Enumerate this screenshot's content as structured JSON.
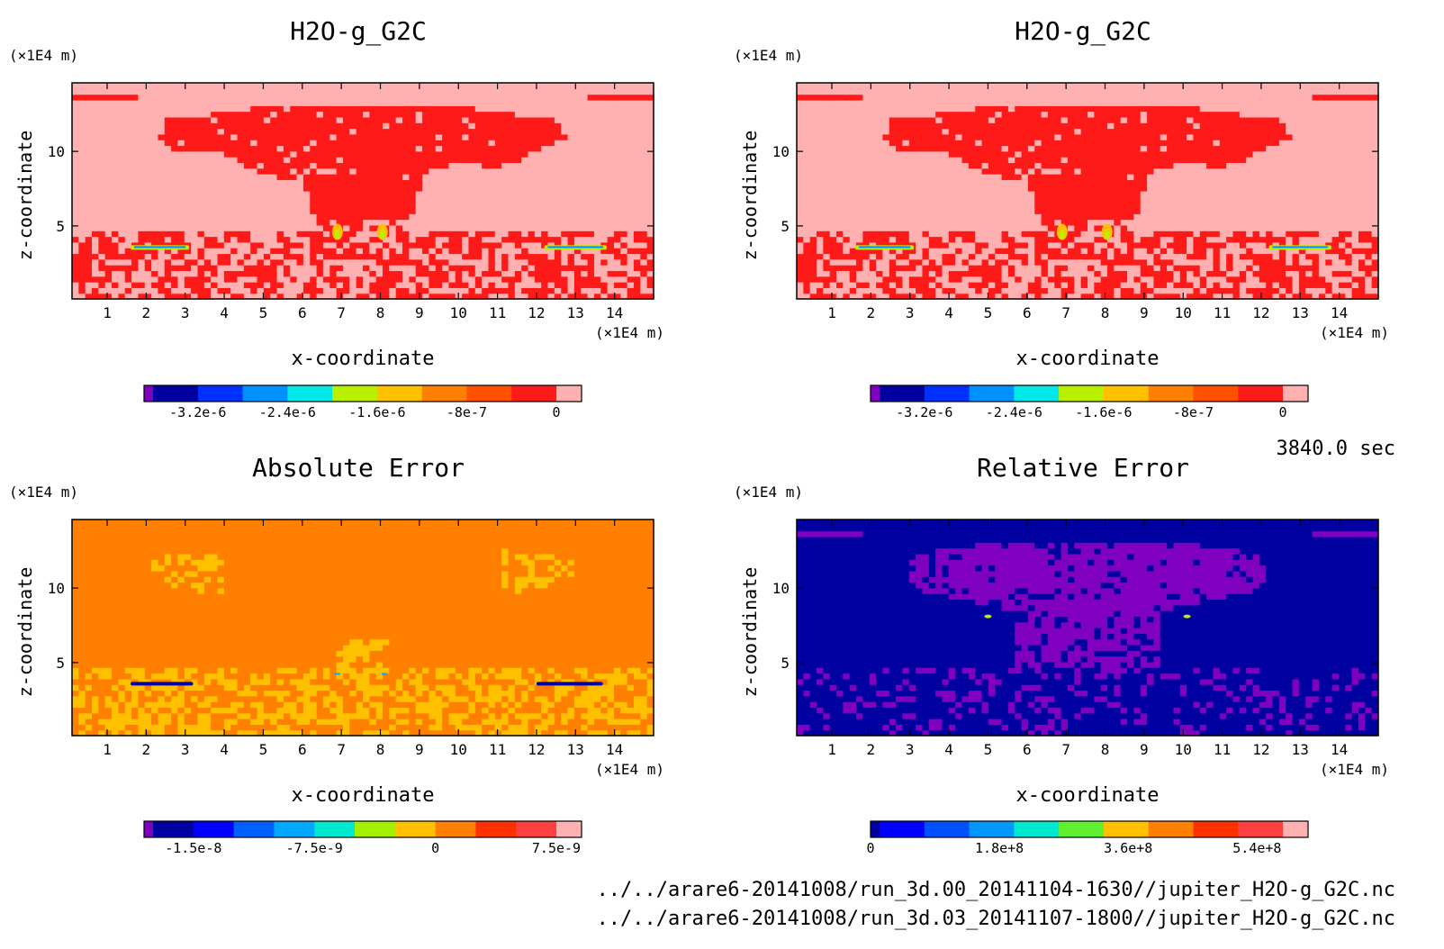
{
  "time_label": "3840.0 sec",
  "file_paths": [
    "../../arare6-20141008/run_3d.00_20141104-1630//jupiter_H2O-g_G2C.nc",
    "../../arare6-20141008/run_3d.03_20141107-1800//jupiter_H2O-g_G2C.nc"
  ],
  "chart_data": [
    {
      "type": "heatmap",
      "title": "H2O-g_G2C",
      "xlabel": "x-coordinate",
      "ylabel": "z-coordinate",
      "x_unit": "(×1E4 m)",
      "y_unit": "(×1E4 m)",
      "x_ticks": [
        1,
        2,
        3,
        4,
        5,
        6,
        7,
        8,
        9,
        10,
        11,
        12,
        13,
        14
      ],
      "y_ticks": [
        5,
        10
      ],
      "xlim": [
        0.1,
        15
      ],
      "ylim": [
        0.1,
        14.6
      ],
      "colorbar": {
        "colors": [
          "#8000c0",
          "#0000a0",
          "#0030ff",
          "#0090ff",
          "#00e8e8",
          "#b8f000",
          "#ffc000",
          "#ff8000",
          "#ff5000",
          "#ff1a1a",
          "#ffb0b0"
        ],
        "ticks": [
          "-3.2e-6",
          "-2.4e-6",
          "-1.6e-6",
          "-8e-7",
          "0"
        ]
      },
      "pattern": "field"
    },
    {
      "type": "heatmap",
      "title": "H2O-g_G2C",
      "xlabel": "x-coordinate",
      "ylabel": "z-coordinate",
      "x_unit": "(×1E4 m)",
      "y_unit": "(×1E4 m)",
      "x_ticks": [
        1,
        2,
        3,
        4,
        5,
        6,
        7,
        8,
        9,
        10,
        11,
        12,
        13,
        14
      ],
      "y_ticks": [
        5,
        10
      ],
      "xlim": [
        0.1,
        15
      ],
      "ylim": [
        0.1,
        14.6
      ],
      "colorbar": {
        "colors": [
          "#8000c0",
          "#0000a0",
          "#0030ff",
          "#0090ff",
          "#00e8e8",
          "#b8f000",
          "#ffc000",
          "#ff8000",
          "#ff5000",
          "#ff1a1a",
          "#ffb0b0"
        ],
        "ticks": [
          "-3.2e-6",
          "-2.4e-6",
          "-1.6e-6",
          "-8e-7",
          "0"
        ]
      },
      "pattern": "field"
    },
    {
      "type": "heatmap",
      "title": "Absolute Error",
      "xlabel": "x-coordinate",
      "ylabel": "z-coordinate",
      "x_unit": "(×1E4 m)",
      "y_unit": "(×1E4 m)",
      "x_ticks": [
        1,
        2,
        3,
        4,
        5,
        6,
        7,
        8,
        9,
        10,
        11,
        12,
        13,
        14
      ],
      "y_ticks": [
        5,
        10
      ],
      "xlim": [
        0.1,
        15
      ],
      "ylim": [
        0.1,
        14.6
      ],
      "colorbar": {
        "colors": [
          "#8000c0",
          "#0000a0",
          "#0000ff",
          "#0060ff",
          "#00a8ff",
          "#00e8d0",
          "#a0f000",
          "#ffc000",
          "#ff8000",
          "#ff3000",
          "#ff4040",
          "#ffb0b0"
        ],
        "ticks": [
          "-1.5e-8",
          "-7.5e-9",
          "0",
          "7.5e-9"
        ]
      },
      "pattern": "abs_error"
    },
    {
      "type": "heatmap",
      "title": "Relative Error",
      "xlabel": "x-coordinate",
      "ylabel": "z-coordinate",
      "x_unit": "(×1E4 m)",
      "y_unit": "(×1E4 m)",
      "x_ticks": [
        1,
        2,
        3,
        4,
        5,
        6,
        7,
        8,
        9,
        10,
        11,
        12,
        13,
        14
      ],
      "y_ticks": [
        5,
        10
      ],
      "xlim": [
        0.1,
        15
      ],
      "ylim": [
        0.1,
        14.6
      ],
      "colorbar": {
        "colors": [
          "#0000a0",
          "#0000ff",
          "#0050ff",
          "#0098ff",
          "#00e8d0",
          "#60f030",
          "#ffc000",
          "#ff8000",
          "#ff3000",
          "#ff4040",
          "#ffb0b0"
        ],
        "ticks": [
          "0",
          "1.8e+8",
          "3.6e+8",
          "5.4e+8"
        ]
      },
      "pattern": "rel_error"
    }
  ]
}
